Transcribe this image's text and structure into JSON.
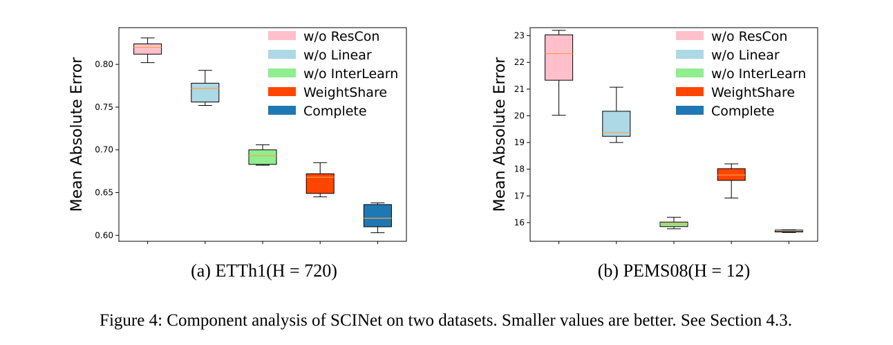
{
  "figure": {
    "caption": "Figure 4: Component analysis of SCINet on two datasets. Smaller values are better. See Section 4.3."
  },
  "colors": {
    "w/o ResCon": "#ffc0cb",
    "w/o Linear": "#add8e6",
    "w/o InterLearn": "#90ee90",
    "WeightShare": "#ff4500",
    "Complete": "#1f77b4",
    "median": "#ff9f4a"
  },
  "chart_data": [
    {
      "type": "box",
      "subcaption": "(a) ETTh1(H = 720)",
      "ylabel": "Mean Absolute Error",
      "ylim": [
        0.593,
        0.843
      ],
      "yticks": [
        0.6,
        0.65,
        0.7,
        0.75,
        0.8
      ],
      "ytick_labels": [
        "0.60",
        "0.65",
        "0.70",
        "0.75",
        "0.80"
      ],
      "legend": {
        "position": "top-right",
        "entries": [
          "w/o ResCon",
          "w/o Linear",
          "w/o InterLearn",
          "WeightShare",
          "Complete"
        ]
      },
      "grid": false,
      "series": [
        {
          "name": "w/o ResCon",
          "whisker_low": 0.802,
          "q1": 0.812,
          "median": 0.82,
          "q3": 0.824,
          "whisker_high": 0.831
        },
        {
          "name": "w/o Linear",
          "whisker_low": 0.752,
          "q1": 0.756,
          "median": 0.772,
          "q3": 0.778,
          "whisker_high": 0.793
        },
        {
          "name": "w/o InterLearn",
          "whisker_low": 0.682,
          "q1": 0.683,
          "median": 0.693,
          "q3": 0.7,
          "whisker_high": 0.706
        },
        {
          "name": "WeightShare",
          "whisker_low": 0.645,
          "q1": 0.649,
          "median": 0.668,
          "q3": 0.672,
          "whisker_high": 0.685
        },
        {
          "name": "Complete",
          "whisker_low": 0.603,
          "q1": 0.61,
          "median": 0.62,
          "q3": 0.636,
          "whisker_high": 0.638
        }
      ]
    },
    {
      "type": "box",
      "subcaption": "(b) PEMS08(H = 12)",
      "ylabel": "Mean Absolute Error",
      "ylim": [
        15.3,
        23.3
      ],
      "yticks": [
        16,
        17,
        18,
        19,
        20,
        21,
        22,
        23
      ],
      "ytick_labels": [
        "16",
        "17",
        "18",
        "19",
        "20",
        "21",
        "22",
        "23"
      ],
      "legend": {
        "position": "top-right",
        "entries": [
          "w/o ResCon",
          "w/o Linear",
          "w/o InterLearn",
          "WeightShare",
          "Complete"
        ]
      },
      "grid": false,
      "series": [
        {
          "name": "w/o ResCon",
          "whisker_low": 20.02,
          "q1": 21.33,
          "median": 22.33,
          "q3": 23.03,
          "whisker_high": 23.2
        },
        {
          "name": "w/o Linear",
          "whisker_low": 19.0,
          "q1": 19.23,
          "median": 19.37,
          "q3": 20.17,
          "whisker_high": 21.07
        },
        {
          "name": "w/o InterLearn",
          "whisker_low": 15.77,
          "q1": 15.85,
          "median": 15.95,
          "q3": 16.02,
          "whisker_high": 16.2
        },
        {
          "name": "WeightShare",
          "whisker_low": 16.92,
          "q1": 17.58,
          "median": 17.78,
          "q3": 18.02,
          "whisker_high": 18.2
        },
        {
          "name": "Complete",
          "whisker_low": 15.63,
          "q1": 15.65,
          "median": 15.7,
          "q3": 15.72,
          "whisker_high": 15.73
        }
      ]
    }
  ]
}
